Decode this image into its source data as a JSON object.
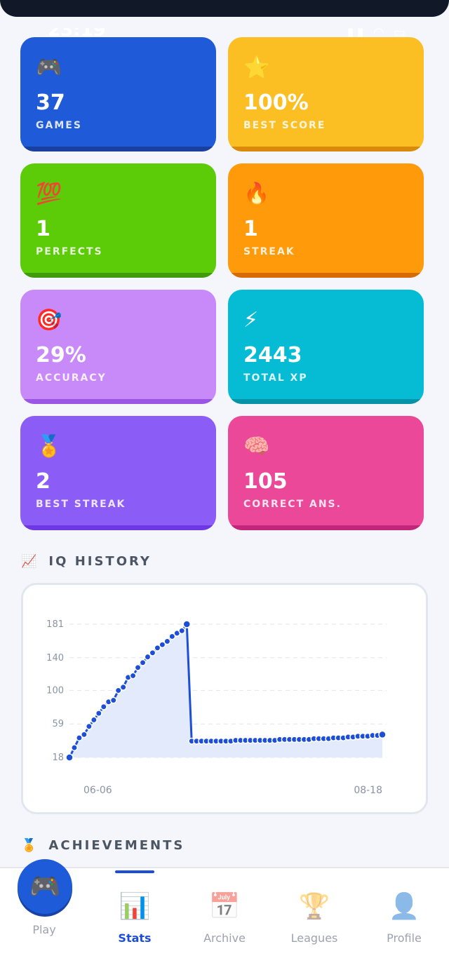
{
  "status": {
    "time": "23:19",
    "right_icons": "signal wifi battery"
  },
  "stats": [
    {
      "emoji": "🎮",
      "value": "37",
      "label": "GAMES",
      "color": "#1f5ad8",
      "shade": "#1a3f9e"
    },
    {
      "emoji": "⭐",
      "value": "100%",
      "label": "BEST SCORE",
      "color": "#fbbf24",
      "shade": "#d98a0a"
    },
    {
      "emoji": "💯",
      "value": "1",
      "label": "PERFECTS",
      "color": "#5ccb08",
      "shade": "#3f9b0a"
    },
    {
      "emoji": "🔥",
      "value": "1",
      "label": "STREAK",
      "color": "#ff9a0a",
      "shade": "#d86a06"
    },
    {
      "emoji": "🎯",
      "value": "29%",
      "label": "ACCURACY",
      "color": "#c88af8",
      "shade": "#9b55e6"
    },
    {
      "emoji": "⚡",
      "value": "2443",
      "label": "TOTAL XP",
      "color": "#06bcd4",
      "shade": "#0593a8"
    },
    {
      "emoji": "🏅",
      "value": "2",
      "label": "BEST STREAK",
      "color": "#8b5cf6",
      "shade": "#6d38e3"
    },
    {
      "emoji": "🧠",
      "value": "105",
      "label": "CORRECT ANS.",
      "color": "#ec4899",
      "shade": "#c2257a"
    }
  ],
  "iq_history": {
    "title": "IQ HISTORY",
    "icon": "chart-increasing-icon"
  },
  "chart_data": {
    "type": "line",
    "title": "",
    "xlabel": "",
    "ylabel": "",
    "yticks": [
      "181",
      "140",
      "100",
      "59",
      "18"
    ],
    "ytick_values": [
      181,
      140,
      100,
      59,
      18
    ],
    "ylim": [
      18,
      181
    ],
    "xtick_labels": [
      "06-06",
      "08-18"
    ],
    "grid": true,
    "line_color": "#1d4ed8",
    "fill_color": "#e3eafb",
    "values": [
      18,
      30,
      42,
      46,
      56,
      64,
      72,
      80,
      86,
      88,
      100,
      104,
      116,
      118,
      128,
      134,
      141,
      146,
      152,
      156,
      160,
      166,
      170,
      173,
      181,
      38,
      38,
      38,
      38,
      38,
      38,
      38,
      38,
      38,
      39,
      39,
      39,
      39,
      39,
      39,
      39,
      39,
      39,
      40,
      40,
      40,
      40,
      40,
      40,
      40,
      41,
      41,
      41,
      41,
      42,
      42,
      42,
      43,
      43,
      44,
      44,
      44,
      45,
      45,
      46
    ]
  },
  "achievements": {
    "title": "ACHIEVEMENTS",
    "icon": "medal-icon"
  },
  "nav": {
    "items": [
      {
        "label": "Play",
        "icon": "🎮",
        "name": "play"
      },
      {
        "label": "Stats",
        "icon": "📊",
        "name": "stats"
      },
      {
        "label": "Archive",
        "icon": "📅",
        "name": "archive"
      },
      {
        "label": "Leagues",
        "icon": "🏆",
        "name": "leagues"
      },
      {
        "label": "Profile",
        "icon": "👤",
        "name": "profile"
      }
    ],
    "active": "Stats"
  }
}
